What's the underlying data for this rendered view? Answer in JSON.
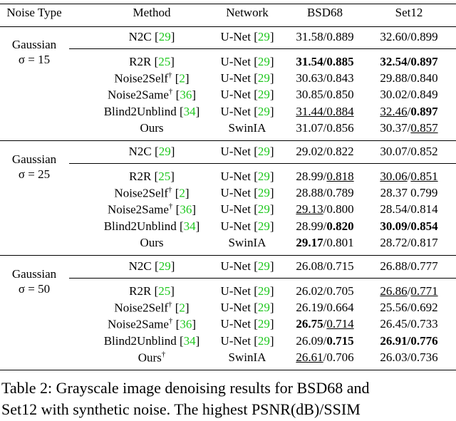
{
  "table": {
    "header": [
      "Noise Type",
      "Method",
      "Network",
      "BSD68",
      "Set12"
    ],
    "cite_open": "[",
    "cite_close": "]",
    "groups": [
      {
        "noise": [
          "Gaussian",
          "σ = 15"
        ],
        "rows": [
          {
            "method": "N2C",
            "cite": "29",
            "network": "U-Net",
            "network_cite": "29",
            "bsd68": [
              {
                "text": "31.58/0.889"
              }
            ],
            "set12": [
              {
                "text": "32.60/0.899"
              }
            ]
          },
          {
            "method": "R2R",
            "cite": "25",
            "network": "U-Net",
            "network_cite": "29",
            "bsd68": [
              {
                "text": "31.54/0.885",
                "style": "bold"
              }
            ],
            "set12": [
              {
                "text": "32.54/0.897",
                "style": "bold"
              }
            ]
          },
          {
            "method": "Noise2Self",
            "dagger": "†",
            "cite": "2",
            "network": "U-Net",
            "network_cite": "29",
            "bsd68": [
              {
                "text": "30.63/0.843"
              }
            ],
            "set12": [
              {
                "text": "29.88/0.840"
              }
            ]
          },
          {
            "method": "Noise2Same",
            "dagger": "†",
            "cite": "36",
            "network": "U-Net",
            "network_cite": "29",
            "bsd68": [
              {
                "text": "30.85/0.850"
              }
            ],
            "set12": [
              {
                "text": "30.02/0.849"
              }
            ]
          },
          {
            "method": "Blind2Unblind",
            "cite": "34",
            "network": "U-Net",
            "network_cite": "29",
            "bsd68": [
              {
                "text": "31.44/0.884",
                "style": "underline"
              }
            ],
            "set12": [
              {
                "text": "32.46",
                "style": "underline"
              },
              {
                "text": "/"
              },
              {
                "text": "0.897",
                "style": "bold"
              }
            ]
          },
          {
            "method": "Ours",
            "network": "SwinIA",
            "bsd68": [
              {
                "text": "31.07/0.856"
              }
            ],
            "set12": [
              {
                "text": "30.37/"
              },
              {
                "text": "0.857",
                "style": "underline"
              }
            ]
          }
        ]
      },
      {
        "noise": [
          "Gaussian",
          "σ = 25"
        ],
        "rows": [
          {
            "method": "N2C",
            "cite": "29",
            "network": "U-Net",
            "network_cite": "29",
            "bsd68": [
              {
                "text": "29.02/0.822"
              }
            ],
            "set12": [
              {
                "text": "30.07/0.852"
              }
            ]
          },
          {
            "method": "R2R",
            "cite": "25",
            "network": "U-Net",
            "network_cite": "29",
            "bsd68": [
              {
                "text": "28.99/"
              },
              {
                "text": "0.818",
                "style": "underline"
              }
            ],
            "set12": [
              {
                "text": "30.06",
                "style": "underline"
              },
              {
                "text": "/"
              },
              {
                "text": "0.851",
                "style": "underline"
              }
            ]
          },
          {
            "method": "Noise2Self",
            "dagger": "†",
            "cite": "2",
            "network": "U-Net",
            "network_cite": "29",
            "bsd68": [
              {
                "text": "28.88/0.789"
              }
            ],
            "set12": [
              {
                "text": "28.37 0.799"
              }
            ]
          },
          {
            "method": "Noise2Same",
            "dagger": "†",
            "cite": "36",
            "network": "U-Net",
            "network_cite": "29",
            "bsd68": [
              {
                "text": "29.13",
                "style": "underline"
              },
              {
                "text": "/0.800"
              }
            ],
            "set12": [
              {
                "text": "28.54/0.814"
              }
            ]
          },
          {
            "method": "Blind2Unblind",
            "cite": "34",
            "network": "U-Net",
            "network_cite": "29",
            "bsd68": [
              {
                "text": "28.99/"
              },
              {
                "text": "0.820",
                "style": "bold"
              }
            ],
            "set12": [
              {
                "text": "30.09/0.854",
                "style": "bold"
              }
            ]
          },
          {
            "method": "Ours",
            "network": "SwinIA",
            "bsd68": [
              {
                "text": "29.17",
                "style": "bold"
              },
              {
                "text": "/0.801"
              }
            ],
            "set12": [
              {
                "text": "28.72/0.817"
              }
            ]
          }
        ]
      },
      {
        "noise": [
          "Gaussian",
          "σ = 50"
        ],
        "rows": [
          {
            "method": "N2C",
            "cite": "29",
            "network": "U-Net",
            "network_cite": "29",
            "bsd68": [
              {
                "text": "26.08/0.715"
              }
            ],
            "set12": [
              {
                "text": "26.88/0.777"
              }
            ]
          },
          {
            "method": "R2R",
            "cite": "25",
            "network": "U-Net",
            "network_cite": "29",
            "bsd68": [
              {
                "text": "26.02/0.705"
              }
            ],
            "set12": [
              {
                "text": "26.86",
                "style": "underline"
              },
              {
                "text": "/"
              },
              {
                "text": "0.771",
                "style": "underline"
              }
            ]
          },
          {
            "method": "Noise2Self",
            "dagger": "†",
            "cite": "2",
            "network": "U-Net",
            "network_cite": "29",
            "bsd68": [
              {
                "text": "26.19/0.664"
              }
            ],
            "set12": [
              {
                "text": "25.56/0.692"
              }
            ]
          },
          {
            "method": "Noise2Same",
            "dagger": "†",
            "cite": "36",
            "network": "U-Net",
            "network_cite": "29",
            "bsd68": [
              {
                "text": "26.75",
                "style": "bold"
              },
              {
                "text": "/"
              },
              {
                "text": "0.714",
                "style": "underline"
              }
            ],
            "set12": [
              {
                "text": "26.45/0.733"
              }
            ]
          },
          {
            "method": "Blind2Unblind",
            "cite": "34",
            "network": "U-Net",
            "network_cite": "29",
            "bsd68": [
              {
                "text": "26.09/"
              },
              {
                "text": "0.715",
                "style": "bold"
              }
            ],
            "set12": [
              {
                "text": "26.91/0.776",
                "style": "bold"
              }
            ]
          },
          {
            "method": "Ours",
            "dagger": "†",
            "network": "SwinIA",
            "bsd68": [
              {
                "text": "26.61",
                "style": "underline"
              },
              {
                "text": "/0.706"
              }
            ],
            "set12": [
              {
                "text": "26.03/0.736"
              }
            ]
          }
        ]
      }
    ]
  },
  "caption": [
    "Table 2: Grayscale image denoising results for BSD68 and",
    "Set12 with synthetic noise.  The highest PSNR(dB)/SSIM"
  ]
}
